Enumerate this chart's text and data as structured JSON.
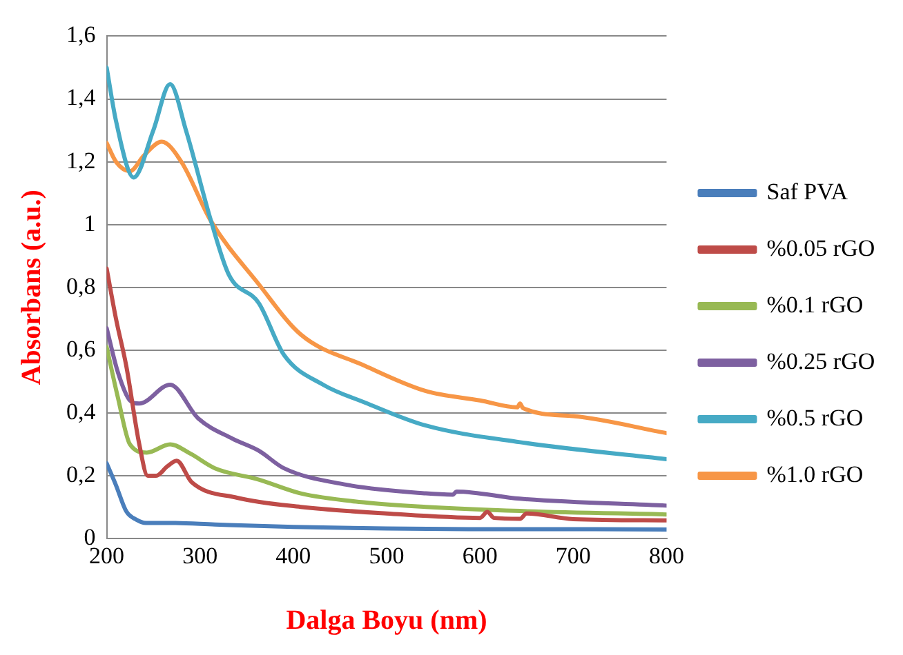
{
  "chart_data": {
    "type": "line",
    "xlabel": "Dalga Boyu (nm)",
    "ylabel": "Absorbans (a.u.)",
    "xlim": [
      200,
      800
    ],
    "xticks": [
      200,
      300,
      400,
      500,
      600,
      700,
      800
    ],
    "ylim": [
      0,
      1.6
    ],
    "yticks": [
      0,
      {
        "value": 0.2,
        "label": "0,2"
      },
      {
        "value": 0.4,
        "label": "0,4"
      },
      {
        "value": 0.6,
        "label": "0,6"
      },
      {
        "value": 0.8,
        "label": "0,8"
      },
      1,
      {
        "value": 1.2,
        "label": "1,2"
      },
      {
        "value": 1.4,
        "label": "1,4"
      },
      {
        "value": 1.6,
        "label": "1,6"
      }
    ],
    "grid": "y",
    "legend": "right",
    "marker": "none",
    "series": [
      {
        "name": "Saf PVA",
        "color": "#4a7ebb",
        "x": [
          200,
          210,
          221,
          232,
          242,
          270,
          316,
          400,
          500,
          600,
          700,
          800
        ],
        "values": [
          0.24,
          0.17,
          0.087,
          0.06,
          0.05,
          0.05,
          0.045,
          0.037,
          0.032,
          0.03,
          0.03,
          0.029
        ]
      },
      {
        "name": "%0.05 rGO",
        "color": "#be4b48",
        "x": [
          200,
          210,
          221,
          235,
          244,
          253,
          265,
          275,
          291,
          340,
          408,
          500,
          600,
          608,
          615,
          643,
          650,
          700,
          800
        ],
        "values": [
          0.86,
          0.7,
          0.55,
          0.3,
          0.2,
          0.2,
          0.23,
          0.248,
          0.18,
          0.13,
          0.101,
          0.08,
          0.066,
          0.085,
          0.066,
          0.063,
          0.08,
          0.062,
          0.058
        ]
      },
      {
        "name": "%0.1 rGO",
        "color": "#98b954",
        "x": [
          200,
          212,
          225,
          243,
          268,
          290,
          316,
          363,
          408,
          477,
          542,
          643,
          800
        ],
        "values": [
          0.61,
          0.45,
          0.3,
          0.274,
          0.3,
          0.27,
          0.224,
          0.188,
          0.144,
          0.115,
          0.101,
          0.088,
          0.077
        ]
      },
      {
        "name": "%0.25 rGO",
        "color": "#7d60a0",
        "x": [
          200,
          212,
          225,
          235,
          268,
          298,
          335,
          363,
          390,
          454,
          542,
          571,
          575,
          643,
          800
        ],
        "values": [
          0.67,
          0.53,
          0.44,
          0.43,
          0.49,
          0.383,
          0.318,
          0.28,
          0.224,
          0.173,
          0.144,
          0.14,
          0.15,
          0.127,
          0.105
        ]
      },
      {
        "name": "%0.5 rGO",
        "color": "#46aac5",
        "x": [
          200,
          210,
          229,
          250,
          268,
          285,
          312,
          331,
          363,
          390,
          432,
          477,
          542,
          643,
          800
        ],
        "values": [
          1.5,
          1.33,
          1.15,
          1.3,
          1.447,
          1.3,
          1.01,
          0.84,
          0.75,
          0.585,
          0.49,
          0.433,
          0.36,
          0.307,
          0.253
        ]
      },
      {
        "name": "%1.0 rGO",
        "color": "#f79646",
        "x": [
          200,
          210,
          225,
          240,
          259,
          280,
          312,
          363,
          408,
          477,
          542,
          600,
          640,
          643,
          646,
          700,
          800
        ],
        "values": [
          1.26,
          1.2,
          1.17,
          1.22,
          1.264,
          1.2,
          1.01,
          0.81,
          0.65,
          0.55,
          0.47,
          0.44,
          0.418,
          0.43,
          0.416,
          0.39,
          0.336
        ]
      }
    ]
  }
}
